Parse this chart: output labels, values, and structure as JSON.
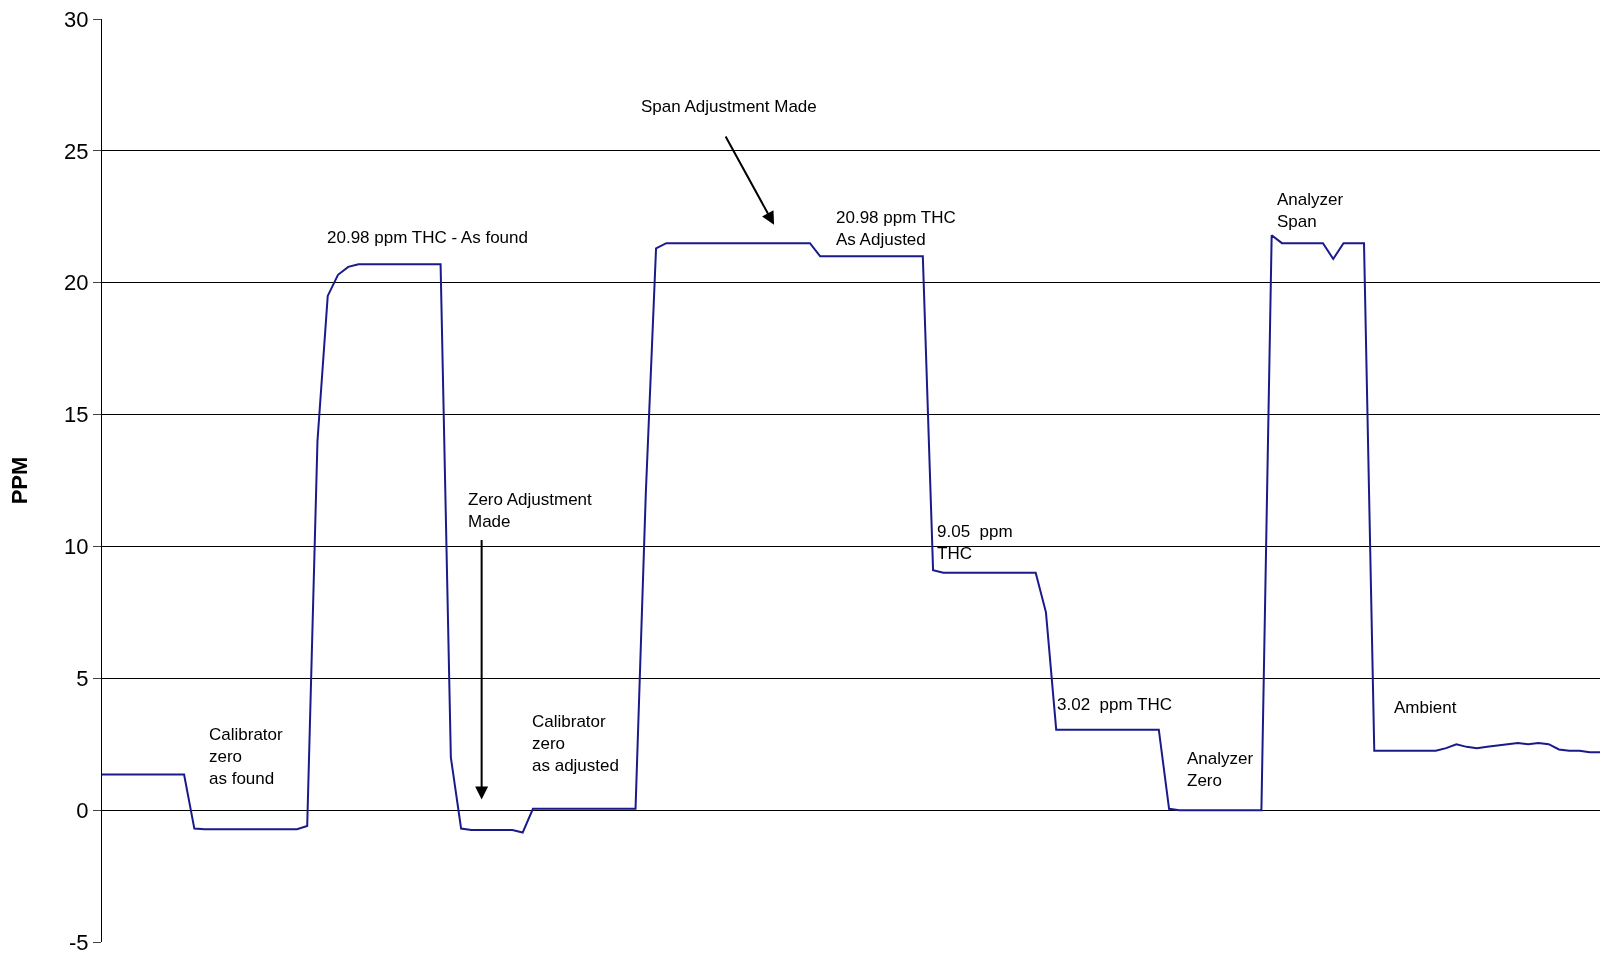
{
  "chart_data": {
    "type": "line",
    "ylabel": "PPM",
    "categories": [
      null,
      null,
      null,
      null,
      null,
      null,
      null,
      null,
      null,
      null,
      null,
      null,
      null,
      null,
      null,
      null,
      null,
      null,
      null,
      null,
      null,
      null,
      null,
      null,
      null,
      null,
      null,
      null,
      null,
      null,
      null,
      null,
      null,
      null,
      null,
      null,
      null,
      null,
      null,
      null,
      null,
      null,
      null,
      null,
      null,
      null,
      null,
      null,
      null,
      null,
      null,
      null,
      null,
      null,
      null,
      null,
      null,
      null,
      null,
      null,
      null,
      null,
      null,
      null,
      null,
      null,
      null,
      null,
      null,
      null,
      null,
      null,
      null,
      null,
      null,
      null,
      null,
      null,
      null,
      null,
      null,
      null,
      null,
      null,
      null,
      null,
      null,
      null,
      null,
      null,
      null,
      null,
      null,
      null,
      null,
      null,
      null,
      null,
      null,
      null,
      null,
      null,
      null,
      null,
      null,
      null,
      null,
      null,
      null,
      null,
      null,
      null,
      null,
      null,
      null,
      null,
      null,
      null,
      null,
      null,
      null,
      null,
      null,
      null,
      null,
      null,
      null,
      null,
      null,
      null,
      null,
      null,
      null,
      null,
      null,
      null,
      null,
      null,
      null,
      null,
      null,
      null,
      null,
      null,
      null,
      null,
      null
    ],
    "series": [
      {
        "color": "#1a1a8c",
        "values": [
          1.35,
          1.35,
          1.35,
          1.35,
          1.35,
          1.35,
          1.35,
          1.35,
          1.35,
          -0.7,
          -0.72,
          -0.72,
          -0.72,
          -0.72,
          -0.72,
          -0.72,
          -0.72,
          -0.72,
          -0.72,
          -0.72,
          -0.6,
          14,
          19.5,
          20.3,
          20.6,
          20.7,
          20.7,
          20.7,
          20.7,
          20.7,
          20.7,
          20.7,
          20.7,
          20.7,
          2,
          -0.7,
          -0.75,
          -0.75,
          -0.75,
          -0.75,
          -0.75,
          -0.85,
          0.05,
          0.05,
          0.05,
          0.05,
          0.05,
          0.05,
          0.05,
          0.05,
          0.05,
          0.05,
          0.05,
          12,
          21.3,
          21.5,
          21.5,
          21.5,
          21.5,
          21.5,
          21.5,
          21.5,
          21.5,
          21.5,
          21.5,
          21.5,
          21.5,
          21.5,
          21.5,
          21.5,
          21,
          21,
          21,
          21,
          21,
          21,
          21,
          21,
          21,
          21,
          21,
          9.1,
          9,
          9,
          9,
          9,
          9,
          9,
          9,
          9,
          9,
          9,
          7.5,
          3.05,
          3.05,
          3.05,
          3.05,
          3.05,
          3.05,
          3.05,
          3.05,
          3.05,
          3.05,
          3.05,
          0.05,
          0,
          0,
          0,
          0,
          0,
          0,
          0,
          0,
          0,
          21.8,
          21.5,
          21.5,
          21.5,
          21.5,
          21.5,
          20.9,
          21.5,
          21.5,
          21.5,
          2.25,
          2.25,
          2.25,
          2.25,
          2.25,
          2.25,
          2.25,
          2.35,
          2.5,
          2.4,
          2.35,
          2.4,
          2.45,
          2.5,
          2.55,
          2.5,
          2.55,
          2.5,
          2.3,
          2.25,
          2.25,
          2.2,
          2.2
        ]
      }
    ],
    "ylim": [
      -5,
      30
    ],
    "yticks": [
      -5,
      0,
      5,
      10,
      15,
      20,
      25,
      30
    ],
    "grid": "y",
    "legend": false,
    "marker": "none",
    "line_style": "solid",
    "tick_labels": "y",
    "annotations": [
      "Calibrator\nzero\nas found",
      "20.98 ppm THC - As found",
      "Zero Adjustment\nMade",
      "Calibrator\nzero\nas adjusted",
      "Span Adjustment Made",
      "20.98 ppm THC\nAs Adjusted",
      "9.05  ppm\nTHC",
      "3.02  ppm THC",
      "Analyzer\nZero",
      "Analyzer\nSpan",
      "Ambient"
    ]
  }
}
